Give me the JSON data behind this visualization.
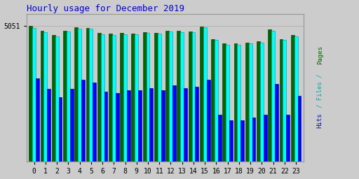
{
  "title": "Hourly usage for December 2019",
  "title_color": "#0000cc",
  "title_fontsize": 9,
  "background_color": "#cccccc",
  "plot_bg_color": "#cccccc",
  "hours": [
    0,
    1,
    2,
    3,
    4,
    5,
    6,
    7,
    8,
    9,
    10,
    11,
    12,
    13,
    14,
    15,
    16,
    17,
    18,
    19,
    20,
    21,
    22,
    23
  ],
  "pages": [
    5051,
    4870,
    4710,
    4880,
    5000,
    4970,
    4790,
    4760,
    4790,
    4770,
    4820,
    4800,
    4880,
    4860,
    4850,
    5030,
    4560,
    4400,
    4390,
    4430,
    4470,
    4920,
    4570,
    4710
  ],
  "files": [
    4980,
    4820,
    4670,
    4840,
    4960,
    4940,
    4750,
    4720,
    4750,
    4730,
    4780,
    4760,
    4840,
    4820,
    4810,
    4990,
    4520,
    4360,
    4350,
    4390,
    4430,
    4880,
    4530,
    4670
  ],
  "hits": [
    3100,
    2700,
    2400,
    2700,
    3050,
    2950,
    2600,
    2550,
    2650,
    2650,
    2750,
    2650,
    2850,
    2750,
    2800,
    3050,
    1750,
    1550,
    1540,
    1650,
    1750,
    2900,
    1750,
    2450
  ],
  "bar_colors_pages": "#006600",
  "bar_colors_files": "#00ffff",
  "bar_colors_hits": "#0000ff",
  "edge_pages": "#003300",
  "edge_files": "#009999",
  "edge_hits": "#000088",
  "ylim_max": 5500,
  "ytick_val": 5051,
  "ytick_label": "5051",
  "right_label_pages": "Pages",
  "right_label_files": "/ Files /",
  "right_label_hits": "Hits",
  "right_color_pages": "#006600",
  "right_color_files": "#00aaaa",
  "right_color_hits": "#0000cc"
}
